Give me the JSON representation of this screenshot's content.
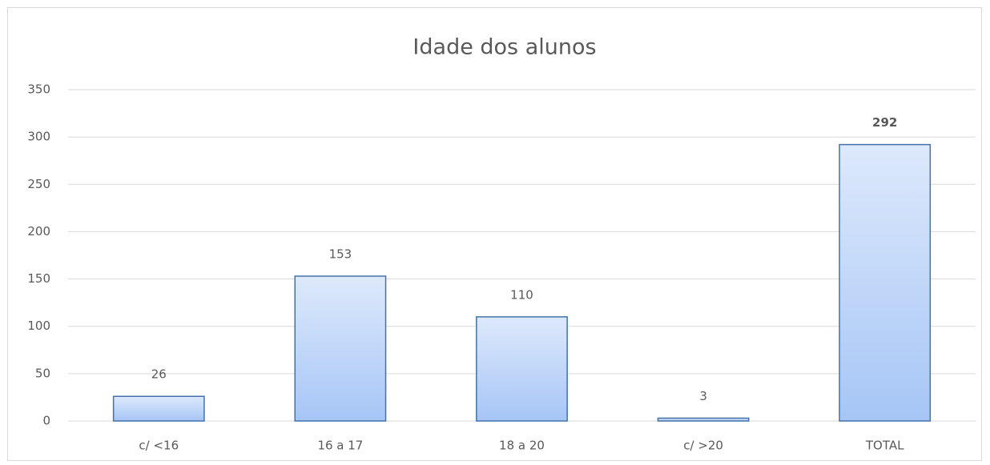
{
  "chart_data": {
    "type": "bar",
    "title": "Idade dos alunos",
    "categories": [
      "c/ <16",
      "16 a 17",
      "18 a 20",
      "c/ >20",
      "TOTAL"
    ],
    "values": [
      26,
      153,
      110,
      3,
      292
    ],
    "color": "#a9c7f5",
    "ylim": [
      0,
      350
    ],
    "yticks": [
      0,
      50,
      100,
      150,
      200,
      250,
      300,
      350
    ],
    "grid": true
  }
}
